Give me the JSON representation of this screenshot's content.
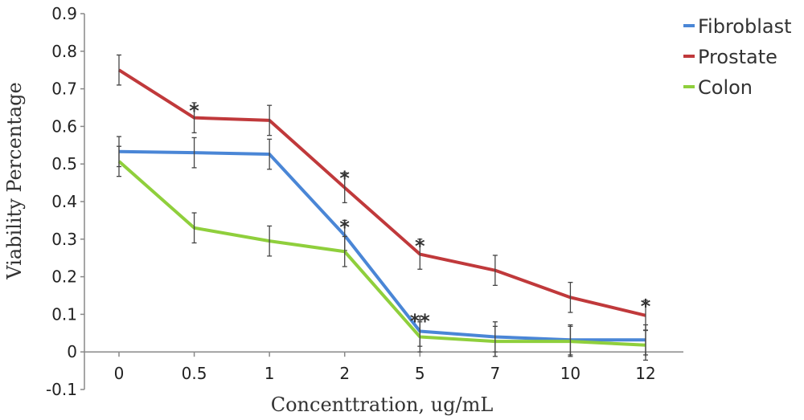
{
  "chart_data": {
    "type": "line",
    "categories": [
      "0",
      "0.5",
      "1",
      "2",
      "5",
      "7",
      "10",
      "12"
    ],
    "xlabel": "Concenttration, ug/mL",
    "ylabel": "Viability Percentage",
    "ylim": [
      -0.1,
      0.9
    ],
    "yticks": [
      -0.1,
      0,
      0.1,
      0.2,
      0.3,
      0.4,
      0.5,
      0.6,
      0.7,
      0.8,
      0.9
    ],
    "grid": false,
    "legend_position": "top-right",
    "series": [
      {
        "name": "Fibroblast",
        "color": "#4a86d6",
        "values": [
          0.533,
          0.53,
          0.526,
          0.31,
          0.055,
          0.04,
          0.032,
          0.032
        ],
        "errors": [
          0.04,
          0.04,
          0.04,
          0.04,
          0.04,
          0.04,
          0.04,
          0.04
        ]
      },
      {
        "name": "Prostate",
        "color": "#c0393b",
        "values": [
          0.75,
          0.623,
          0.616,
          0.437,
          0.26,
          0.217,
          0.145,
          0.097
        ],
        "errors": [
          0.04,
          0.04,
          0.04,
          0.04,
          0.04,
          0.04,
          0.04,
          0.04
        ]
      },
      {
        "name": "Colon",
        "color": "#8fcf3c",
        "values": [
          0.507,
          0.33,
          0.295,
          0.267,
          0.04,
          0.028,
          0.028,
          0.018
        ],
        "errors": [
          0.04,
          0.04,
          0.04,
          0.04,
          0.04,
          0.04,
          0.04,
          0.04
        ]
      }
    ],
    "annotations": [
      {
        "text": "*",
        "category": 1,
        "y": 0.65
      },
      {
        "text": "*",
        "category": 3,
        "y": 0.47
      },
      {
        "text": "*",
        "category": 3,
        "y": 0.34
      },
      {
        "text": "*",
        "category": 4,
        "y": 0.29
      },
      {
        "text": "**",
        "category": 4,
        "y": 0.09
      },
      {
        "text": "*",
        "category": 7,
        "y": 0.13
      }
    ]
  }
}
